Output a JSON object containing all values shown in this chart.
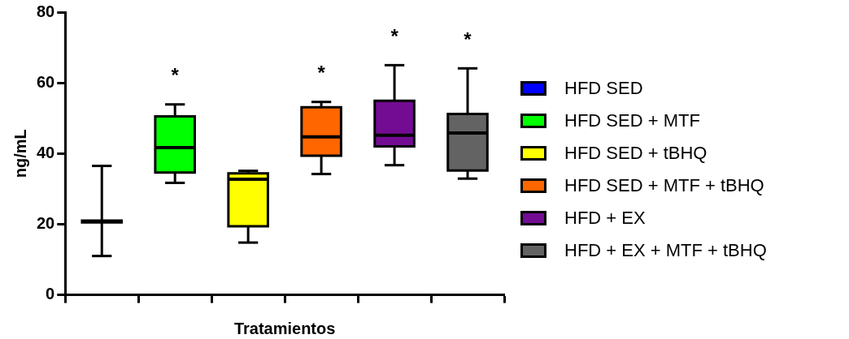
{
  "chart_data": {
    "type": "box",
    "xlabel": "Tratamientos",
    "ylabel": "ng/mL",
    "categories": [
      null,
      null,
      null,
      null,
      null,
      null
    ],
    "ylim": [
      0,
      80
    ],
    "yticks": [
      0,
      20,
      40,
      60,
      80
    ],
    "grid": false,
    "legend": "right",
    "series": [
      {
        "name": "HFD SED",
        "color": "#0000ff",
        "boxes": [
          {
            "low": 11.0,
            "q1": 20.5,
            "median": 20.8,
            "q3": 21.0,
            "high": 36.5
          },
          null,
          null,
          null,
          null,
          null
        ]
      },
      {
        "name": "HFD SED + MTF",
        "color": "#00ff00",
        "boxes": [
          null,
          {
            "low": 31.7,
            "q1": 34.6,
            "median": 41.7,
            "q3": 50.5,
            "high": 53.9
          },
          null,
          null,
          null,
          null
        ]
      },
      {
        "name": "HFD SED + tBHQ",
        "color": "#ffff00",
        "boxes": [
          null,
          null,
          {
            "low": 14.8,
            "q1": 19.4,
            "median": 32.7,
            "q3": 34.4,
            "high": 35.1
          },
          null,
          null,
          null
        ]
      },
      {
        "name": "HFD SED + MTF + tBHQ",
        "color": "#ff6600",
        "boxes": [
          null,
          null,
          null,
          {
            "low": 34.2,
            "q1": 39.4,
            "median": 44.7,
            "q3": 53.1,
            "high": 54.6
          },
          null,
          null
        ]
      },
      {
        "name": "HFD + EX",
        "color": "#730c93",
        "boxes": [
          null,
          null,
          null,
          null,
          {
            "low": 36.7,
            "q1": 42.0,
            "median": 45.2,
            "q3": 54.9,
            "high": 65.0
          },
          null
        ]
      },
      {
        "name": "HFD + EX + MTF + tBHQ",
        "color": "#636363",
        "boxes": [
          null,
          null,
          null,
          null,
          null,
          {
            "low": 32.9,
            "q1": 35.2,
            "median": 45.8,
            "q3": 51.2,
            "high": 64.1
          }
        ]
      }
    ],
    "annotations": [
      "*",
      "*",
      "*",
      "*"
    ]
  }
}
